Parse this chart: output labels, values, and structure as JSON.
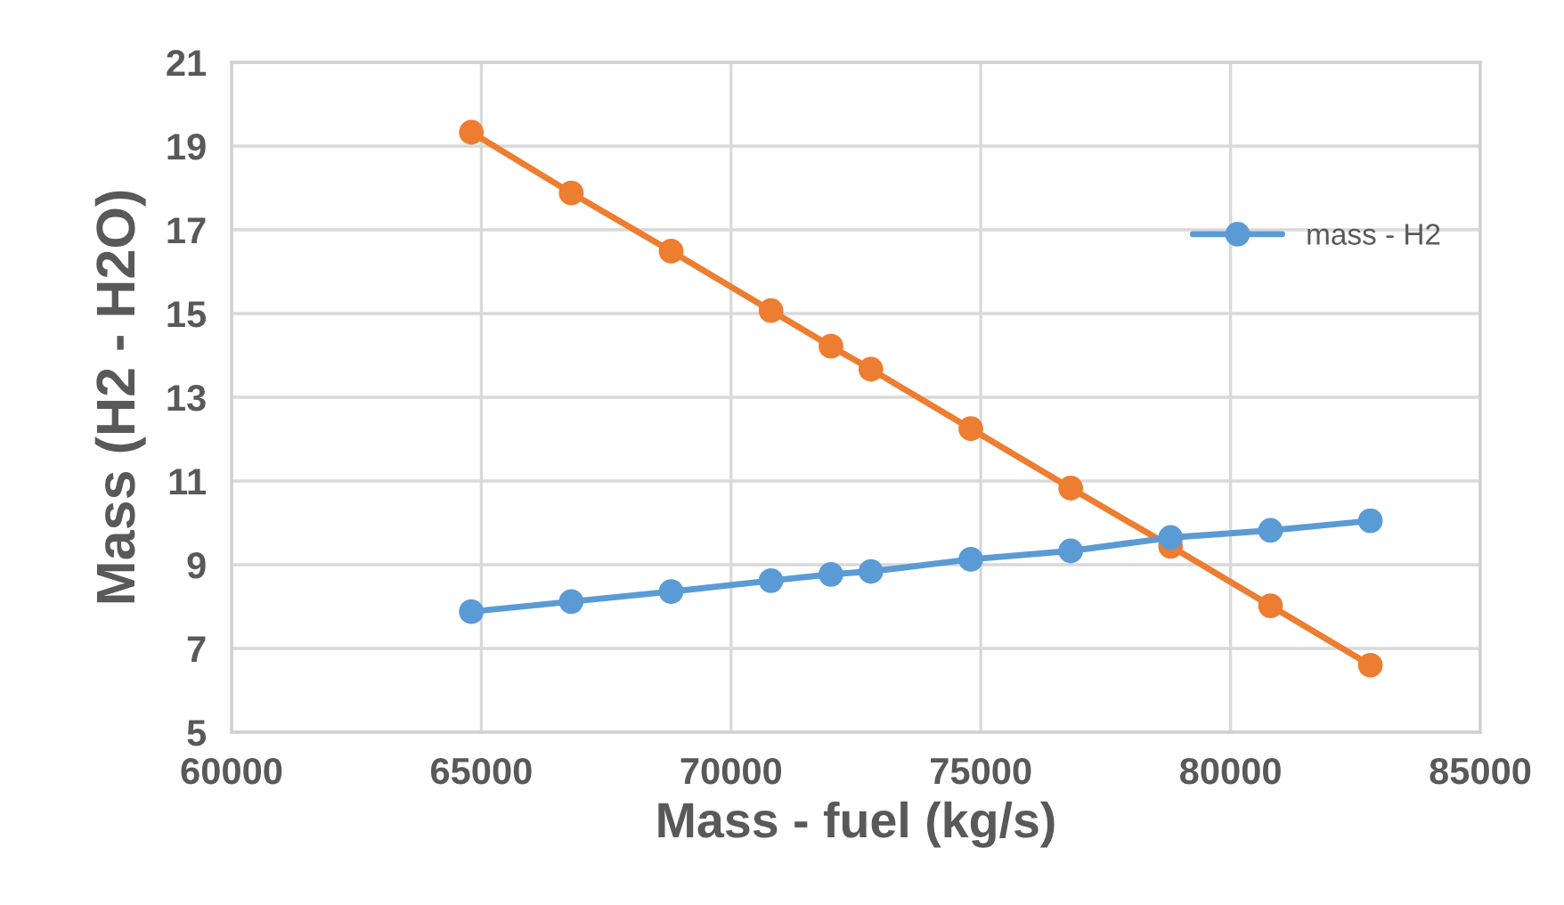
{
  "chart_data": {
    "type": "line",
    "xlabel": "Mass - fuel (kg/s)",
    "ylabel": "Mass (H2 - H2O)",
    "x": [
      64800,
      66800,
      68800,
      70800,
      72000,
      72800,
      74800,
      76800,
      78800,
      80800,
      82800
    ],
    "series": [
      {
        "name": "mass - H2",
        "color": "#5b9bd5",
        "values": [
          7.88,
          8.12,
          8.36,
          8.62,
          8.77,
          8.84,
          9.13,
          9.33,
          9.65,
          9.82,
          10.05
        ]
      },
      {
        "color": "#ed7d31",
        "values": [
          19.33,
          17.88,
          16.49,
          15.07,
          14.22,
          13.67,
          12.25,
          10.83,
          9.44,
          8.02,
          6.6
        ]
      }
    ],
    "xlim": [
      60000,
      85000
    ],
    "xticks": [
      60000,
      65000,
      70000,
      75000,
      80000,
      85000
    ],
    "ylim": [
      5,
      21
    ],
    "yticks": [
      5,
      7,
      9,
      11,
      13,
      15,
      17,
      19,
      21
    ],
    "grid": true,
    "legend": "top right",
    "marker": "circle",
    "line_style": "solid"
  }
}
